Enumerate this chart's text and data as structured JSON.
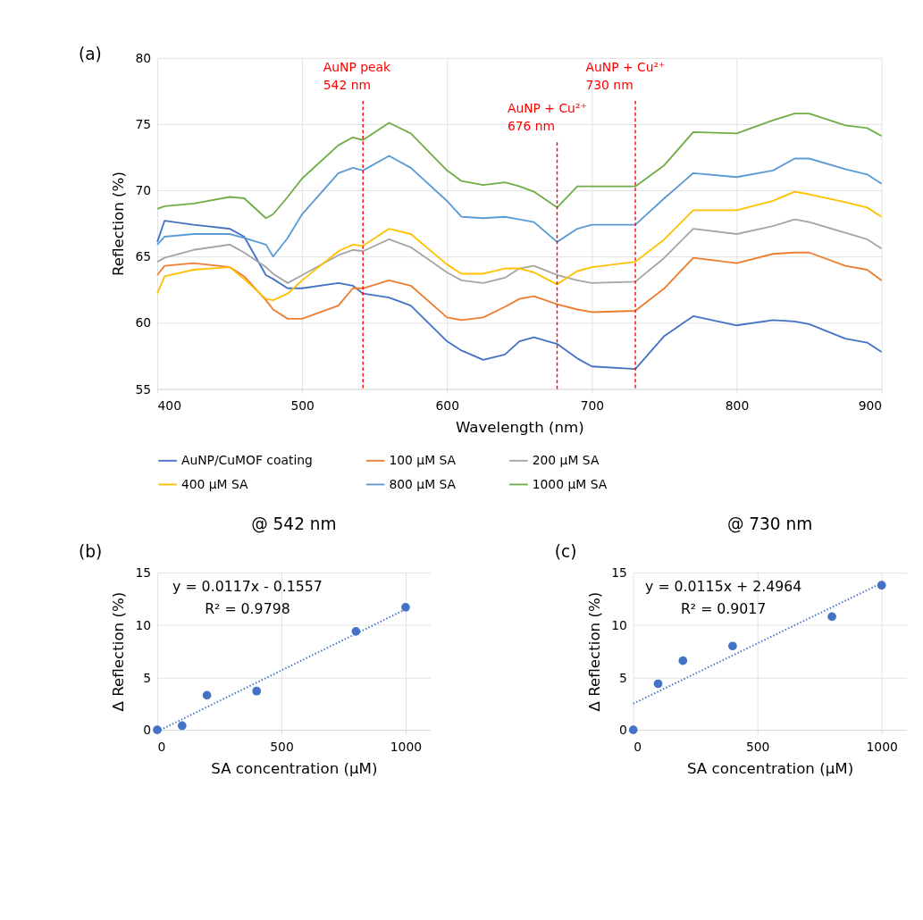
{
  "chart_data": [
    {
      "type": "line",
      "xlabel": "Wavelength (nm)",
      "ylabel": "Reflection (%)",
      "xlim": [
        400,
        900
      ],
      "ylim": [
        55,
        80
      ],
      "xticks": [
        400,
        500,
        600,
        700,
        800,
        900
      ],
      "yticks": [
        55,
        60,
        65,
        70,
        75,
        80
      ],
      "grid": true,
      "legend": "bottom",
      "line_style": "solid",
      "marker": "none",
      "x": [
        400,
        405,
        425,
        450,
        460,
        475,
        480,
        490,
        500,
        525,
        535,
        542,
        560,
        575,
        600,
        610,
        625,
        640,
        650,
        660,
        676,
        690,
        700,
        730,
        750,
        770,
        800,
        825,
        840,
        850,
        875,
        890,
        900
      ],
      "series": [
        {
          "name": "AuNP/CuMOF coating",
          "color": "#4472c4",
          "values": [
            66.1,
            67.7,
            67.4,
            67.1,
            66.5,
            63.6,
            63.3,
            62.6,
            62.6,
            63.0,
            62.8,
            62.2,
            61.9,
            61.3,
            58.6,
            57.9,
            57.2,
            57.6,
            58.6,
            58.9,
            58.4,
            57.3,
            56.7,
            56.5,
            59.0,
            60.5,
            59.8,
            60.2,
            60.1,
            59.9,
            58.8,
            58.5,
            57.8
          ]
        },
        {
          "name": "100 μM SA",
          "color": "#ed7d31",
          "values": [
            63.6,
            64.3,
            64.5,
            64.2,
            63.5,
            61.7,
            61.0,
            60.3,
            60.3,
            61.3,
            62.6,
            62.6,
            63.2,
            62.8,
            60.4,
            60.2,
            60.4,
            61.2,
            61.8,
            62.0,
            61.4,
            61.0,
            60.8,
            60.9,
            62.6,
            64.9,
            64.5,
            65.2,
            65.3,
            65.3,
            64.3,
            64.0,
            63.2
          ]
        },
        {
          "name": "200 μM SA",
          "color": "#a5a5a5",
          "values": [
            64.6,
            64.9,
            65.5,
            65.9,
            65.3,
            64.2,
            63.7,
            63.0,
            63.6,
            65.1,
            65.5,
            65.4,
            66.3,
            65.7,
            63.8,
            63.2,
            63.0,
            63.4,
            64.1,
            64.3,
            63.6,
            63.2,
            63.0,
            63.1,
            64.9,
            67.1,
            66.7,
            67.3,
            67.8,
            67.6,
            66.8,
            66.3,
            65.6
          ]
        },
        {
          "name": "400 μM SA",
          "color": "#ffc000",
          "values": [
            62.2,
            63.5,
            64.0,
            64.2,
            63.3,
            61.8,
            61.7,
            62.2,
            63.2,
            65.4,
            65.9,
            65.8,
            67.1,
            66.7,
            64.4,
            63.7,
            63.7,
            64.1,
            64.1,
            63.8,
            62.9,
            63.9,
            64.2,
            64.6,
            66.3,
            68.5,
            68.5,
            69.2,
            69.9,
            69.7,
            69.1,
            68.7,
            68.0
          ]
        },
        {
          "name": "800 μM SA",
          "color": "#5b9bd5",
          "values": [
            65.9,
            66.5,
            66.7,
            66.7,
            66.4,
            65.9,
            65.0,
            66.4,
            68.2,
            71.3,
            71.7,
            71.5,
            72.6,
            71.7,
            69.2,
            68.0,
            67.9,
            68.0,
            67.8,
            67.6,
            66.1,
            67.1,
            67.4,
            67.4,
            69.4,
            71.3,
            71.0,
            71.5,
            72.4,
            72.4,
            71.6,
            71.2,
            70.5
          ]
        },
        {
          "name": "1000 μM SA",
          "color": "#70ad47",
          "values": [
            68.6,
            68.8,
            69.0,
            69.5,
            69.4,
            67.9,
            68.2,
            69.5,
            70.9,
            73.4,
            74.0,
            73.8,
            75.1,
            74.3,
            71.5,
            70.7,
            70.4,
            70.6,
            70.3,
            69.9,
            68.7,
            70.3,
            70.3,
            70.3,
            71.9,
            74.4,
            74.3,
            75.3,
            75.8,
            75.8,
            74.9,
            74.7,
            74.1
          ]
        }
      ],
      "ref_lines": [
        {
          "axis": "x",
          "value": 542,
          "label": "AuNP peak\n542 nm",
          "color": "#ff0000",
          "line_style": "dashed"
        },
        {
          "axis": "x",
          "value": 676,
          "label": "AuNP + Cu²⁺\n676 nm",
          "color": "#ff0000",
          "line_style": "dashed"
        },
        {
          "axis": "x",
          "value": 730,
          "label": "AuNP + Cu²⁺\n730 nm",
          "color": "#ff0000",
          "line_style": "dashed"
        }
      ],
      "annotations": [
        "(a)"
      ]
    },
    {
      "type": "scatter",
      "title": "@ 542 nm",
      "xlabel": "SA concentration (μM)",
      "ylabel": "Δ Reflection (%)",
      "xlim": [
        0,
        1100
      ],
      "ylim": [
        0,
        15
      ],
      "xticks": [
        0,
        500,
        1000
      ],
      "yticks": [
        0,
        5,
        10,
        15
      ],
      "grid": true,
      "marker": "circle",
      "series": [
        {
          "type": "scatter",
          "color": "#4472c4",
          "x": [
            0,
            100,
            200,
            400,
            800,
            1000
          ],
          "values": [
            0,
            0.4,
            3.3,
            3.7,
            9.4,
            11.7
          ]
        },
        {
          "type": "line",
          "color": "#4472c4",
          "line_style": "dotted",
          "marker": "none",
          "x": [
            13,
            1000
          ],
          "values": [
            0,
            11.5
          ]
        }
      ],
      "annotations": [
        "(b)",
        "y = 0.0117x - 0.1557",
        "R² = 0.9798"
      ]
    },
    {
      "type": "scatter",
      "title": "@ 730 nm",
      "xlabel": "SA concentration (μM)",
      "ylabel": "Δ Reflection (%)",
      "xlim": [
        0,
        1100
      ],
      "ylim": [
        0,
        15
      ],
      "xticks": [
        0,
        500,
        1000
      ],
      "yticks": [
        0,
        5,
        10,
        15
      ],
      "grid": true,
      "marker": "circle",
      "series": [
        {
          "type": "scatter",
          "color": "#4472c4",
          "x": [
            0,
            100,
            200,
            400,
            800,
            1000
          ],
          "values": [
            0,
            4.4,
            6.6,
            8.0,
            10.8,
            13.8
          ]
        },
        {
          "type": "line",
          "color": "#4472c4",
          "line_style": "dotted",
          "marker": "none",
          "x": [
            0,
            1000
          ],
          "values": [
            2.5,
            14.0
          ]
        }
      ],
      "annotations": [
        "(c)",
        "y = 0.0115x + 2.4964",
        "R² = 0.9017"
      ]
    }
  ]
}
